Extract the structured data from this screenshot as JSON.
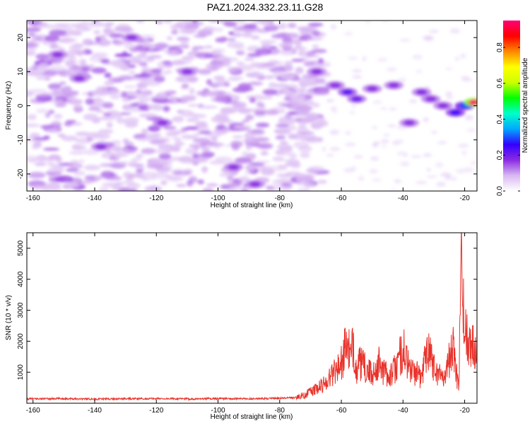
{
  "title": "PAZ1.2024.332.23.11.G28",
  "chart_data": [
    {
      "type": "heatmap",
      "xlabel": "Height of straight line (km)",
      "ylabel": "Frequency (Hz)",
      "xlim": [
        -162,
        -16
      ],
      "ylim": [
        -25,
        25
      ],
      "xticks": [
        -160,
        -140,
        -120,
        -100,
        -80,
        -60,
        -40,
        -20
      ],
      "yticks": [
        -20,
        -10,
        0,
        10,
        20
      ],
      "grid": false,
      "colorbar": {
        "label": "Normalized spectral amplitude",
        "range": [
          0,
          0.95
        ],
        "ticks": [
          0.0,
          0.2,
          0.4,
          0.6,
          0.8
        ],
        "colormap": [
          "#ffffff",
          "#d9b8f2",
          "#8a2be2",
          "#3300ff",
          "#00a8ff",
          "#00ffcc",
          "#00ff00",
          "#ccff00",
          "#ffff00",
          "#ff8800",
          "#ff0000",
          "#ff0077"
        ]
      },
      "features": [
        {
          "x": -152,
          "y": 15,
          "amp": 0.08
        },
        {
          "x": -145,
          "y": 8,
          "amp": 0.07
        },
        {
          "x": -138,
          "y": -12,
          "amp": 0.06
        },
        {
          "x": -128,
          "y": 20,
          "amp": 0.06
        },
        {
          "x": -118,
          "y": -5,
          "amp": 0.07
        },
        {
          "x": -110,
          "y": 10,
          "amp": 0.05
        },
        {
          "x": -95,
          "y": -18,
          "amp": 0.06
        },
        {
          "x": -88,
          "y": -23,
          "amp": 0.1
        },
        {
          "x": -68,
          "y": 10,
          "amp": 0.12
        },
        {
          "x": -62,
          "y": 6,
          "amp": 0.15
        },
        {
          "x": -58,
          "y": 4,
          "amp": 0.22
        },
        {
          "x": -55,
          "y": 2,
          "amp": 0.2
        },
        {
          "x": -50,
          "y": 5,
          "amp": 0.12
        },
        {
          "x": -43,
          "y": 6,
          "amp": 0.16
        },
        {
          "x": -38,
          "y": -5,
          "amp": 0.1
        },
        {
          "x": -34,
          "y": 4,
          "amp": 0.18
        },
        {
          "x": -31,
          "y": 2,
          "amp": 0.15
        },
        {
          "x": -27,
          "y": 0,
          "amp": 0.14
        },
        {
          "x": -23,
          "y": -2,
          "amp": 0.25
        },
        {
          "x": -20,
          "y": 0,
          "amp": 0.3
        },
        {
          "x": -17,
          "y": 1,
          "amp": 0.95
        }
      ]
    },
    {
      "type": "line",
      "xlabel": "Height of straight line (km)",
      "ylabel": "SNR (10 * v/v)",
      "xlim": [
        -162,
        -16
      ],
      "ylim": [
        0,
        5500
      ],
      "xticks": [
        -160,
        -140,
        -120,
        -100,
        -80,
        -60,
        -40,
        -20
      ],
      "yticks": [
        1000,
        2000,
        3000,
        4000,
        5000
      ],
      "grid": false,
      "series": [
        {
          "color": "#e8332b",
          "x": [
            -162,
            -150,
            -140,
            -130,
            -120,
            -110,
            -100,
            -90,
            -80,
            -75,
            -72,
            -70,
            -68,
            -66,
            -64,
            -62,
            -60,
            -58,
            -57,
            -56,
            -55,
            -54,
            -52,
            -50,
            -48,
            -46,
            -44,
            -42,
            -40,
            -38,
            -36,
            -34,
            -32,
            -30,
            -28,
            -26,
            -24,
            -23,
            -22,
            -21.5,
            -21,
            -20.5,
            -20,
            -19,
            -18,
            -17,
            -16
          ],
          "y": [
            140,
            150,
            135,
            145,
            150,
            140,
            150,
            145,
            160,
            180,
            260,
            380,
            450,
            600,
            800,
            1100,
            1300,
            2000,
            1400,
            1900,
            1000,
            1300,
            1100,
            900,
            1300,
            1000,
            900,
            1200,
            1800,
            1100,
            1000,
            800,
            2000,
            1200,
            900,
            1000,
            1900,
            1200,
            500,
            2200,
            5500,
            3000,
            2400,
            2000,
            2100,
            1700,
            2500
          ]
        }
      ]
    }
  ]
}
